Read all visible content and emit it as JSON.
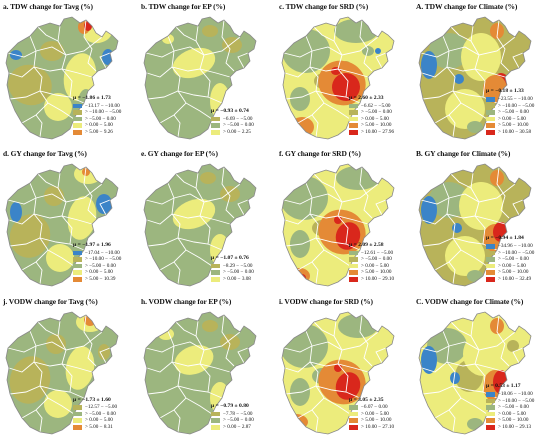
{
  "colors": {
    "blue": "#3b84c8",
    "sage": "#9cb67f",
    "olive": "#b8b35a",
    "yellow": "#ecec7c",
    "orange": "#e48a36",
    "red": "#d9271c",
    "border": "#ffffff",
    "outline": "#8a8a8a"
  },
  "panels": [
    {
      "id": "a",
      "title": "a. TDW change for Tavg (%)",
      "mu": "μ = −1.86 ± 1.73",
      "legend": [
        {
          "color": "blue",
          "label": "−13.17 − −10.00"
        },
        {
          "color": "olive",
          "label": "> −10.00 − −5.00"
        },
        {
          "color": "sage",
          "label": "> −5.00 − 0.00"
        },
        {
          "color": "yellow",
          "label": "> 0.00 − 5.00"
        },
        {
          "color": "orange",
          "label": "> 5.00 − 9.26"
        }
      ]
    },
    {
      "id": "b",
      "title": "b. TDW change for EP (%)",
      "mu": "μ = −0.93 ± 0.74",
      "legend": [
        {
          "color": "olive",
          "label": "−6.69 − −5.00"
        },
        {
          "color": "sage",
          "label": "> −5.00 − 0.00"
        },
        {
          "color": "yellow",
          "label": "> 0.00 − 2.25"
        }
      ]
    },
    {
      "id": "c",
      "title": "c. TDW change for SRD (%)",
      "mu": "μ = 2.60 ± 2.33",
      "legend": [
        {
          "color": "sage",
          "label": "−6.62 − −5.00"
        },
        {
          "color": "olive",
          "label": "> −5.00 − 0.00"
        },
        {
          "color": "yellow",
          "label": "> 0.00 − 5.00"
        },
        {
          "color": "orange",
          "label": "> 5.00 − 10.00"
        },
        {
          "color": "red",
          "label": "> 10.00 − 27.96"
        }
      ]
    },
    {
      "id": "A",
      "title": "A. TDW change for Climate (%)",
      "mu": "μ = −0.18 ± 1.33",
      "legend": [
        {
          "color": "blue",
          "label": "−23.55 − −10.00"
        },
        {
          "color": "olive",
          "label": "> −10.00 − −5.00"
        },
        {
          "color": "sage",
          "label": "> −5.00 − 0.00"
        },
        {
          "color": "yellow",
          "label": "> 0.00 − 5.00"
        },
        {
          "color": "orange",
          "label": "> 5.00 − 10.00"
        },
        {
          "color": "red",
          "label": "> 10.00 − 30.58"
        }
      ]
    },
    {
      "id": "d",
      "title": "d. GY change for Tavg (%)",
      "mu": "μ = −1.97 ± 1.96",
      "legend": [
        {
          "color": "blue",
          "label": "−17.04 − −10.00"
        },
        {
          "color": "olive",
          "label": "> −10.00 − −5.00"
        },
        {
          "color": "sage",
          "label": "> −5.00 − 0.00"
        },
        {
          "color": "yellow",
          "label": "> 0.00 − 5.00"
        },
        {
          "color": "orange",
          "label": "> 5.00 − 10.39"
        }
      ]
    },
    {
      "id": "e",
      "title": "e. GY change for EP (%)",
      "mu": "μ = −1.07 ± 0.76",
      "legend": [
        {
          "color": "olive",
          "label": "−8.29 − −5.00"
        },
        {
          "color": "sage",
          "label": "> −5.00 − 0.00"
        },
        {
          "color": "yellow",
          "label": "> 0.00 − 3.08"
        }
      ]
    },
    {
      "id": "f",
      "title": "f. GY change for SRD (%)",
      "mu": "μ = 2.09 ± 2.58",
      "legend": [
        {
          "color": "sage",
          "label": "−12.61 − −5.00"
        },
        {
          "color": "olive",
          "label": "> −5.00 − 0.00"
        },
        {
          "color": "yellow",
          "label": "> 0.00 − 5.00"
        },
        {
          "color": "orange",
          "label": "> 5.00 − 10.00"
        },
        {
          "color": "red",
          "label": "> 10.00 − 29.10"
        }
      ]
    },
    {
      "id": "B",
      "title": "B. GY change for Climate (%)",
      "mu": "μ = −0.94 ± 1.84",
      "legend": [
        {
          "color": "blue",
          "label": "−34.96 − −10.00"
        },
        {
          "color": "olive",
          "label": "> −10.00 − −5.00"
        },
        {
          "color": "sage",
          "label": "> −5.00 − 0.00"
        },
        {
          "color": "yellow",
          "label": "> 0.00 − 5.00"
        },
        {
          "color": "orange",
          "label": "> 5.00 − 10.00"
        },
        {
          "color": "red",
          "label": "> 10.00 − 32.49"
        }
      ]
    },
    {
      "id": "j",
      "title": "j. VODW change for Tavg (%)",
      "mu": "μ = −1.73 ± 1.60",
      "legend": [
        {
          "color": "olive",
          "label": "−12.57 − −5.00"
        },
        {
          "color": "sage",
          "label": "> −5.00 − 0.00"
        },
        {
          "color": "yellow",
          "label": "> 0.00 − 5.00"
        },
        {
          "color": "orange",
          "label": "> 5.00 − 8.31"
        }
      ]
    },
    {
      "id": "h",
      "title": "h. VODW change for EP (%)",
      "mu": "μ = −0.79 ± 0.80",
      "legend": [
        {
          "color": "olive",
          "label": "−7.78 − −5.00"
        },
        {
          "color": "sage",
          "label": "> −5.00 − 0.00"
        },
        {
          "color": "yellow",
          "label": "> 0.00 − 2.87"
        }
      ]
    },
    {
      "id": "i",
      "title": "i. VODW change for SRD (%)",
      "mu": "μ = 3.05 ± 2.35",
      "legend": [
        {
          "color": "sage",
          "label": "−6.07 − 0.00"
        },
        {
          "color": "yellow",
          "label": "> 0.00 − 5.00"
        },
        {
          "color": "orange",
          "label": "> 5.00 − 10.00"
        },
        {
          "color": "red",
          "label": "> 10.00 − 27.10"
        }
      ]
    },
    {
      "id": "C",
      "title": "C. VODW change for Climate (%)",
      "mu": "μ = 0.53 ± 1.17",
      "legend": [
        {
          "color": "blue",
          "label": "−18.06 − −10.00"
        },
        {
          "color": "olive",
          "label": "> −10.00 − −5.00"
        },
        {
          "color": "sage",
          "label": "> −5.00 − 0.00"
        },
        {
          "color": "yellow",
          "label": "> 0.00 − 5.00"
        },
        {
          "color": "orange",
          "label": "> 5.00 − 10.00"
        },
        {
          "color": "red",
          "label": "> 10.00 − 29.13"
        }
      ]
    }
  ]
}
